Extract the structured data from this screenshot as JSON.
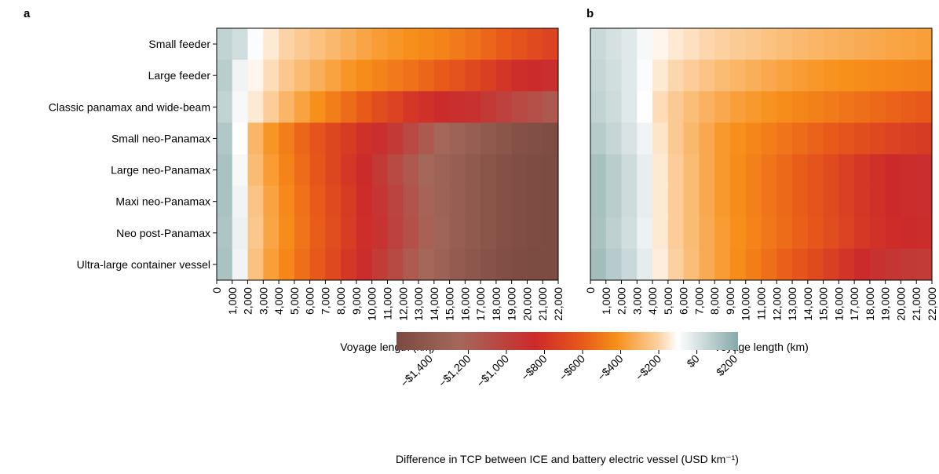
{
  "chart_data": [
    {
      "type": "heatmap",
      "panel_label": "a",
      "x_label": "Voyage length (km)",
      "categories": [
        "Small feeder",
        "Large feeder",
        "Classic panamax and wide-beam",
        "Small neo-Panamax",
        "Large neo-Panamax",
        "Maxi neo-Panamax",
        "Neo post-Panamax",
        "Ultra-large container vessel"
      ],
      "xlim": [
        0,
        22000
      ],
      "xticks": [
        0,
        {
          "value": 1000,
          "label": "1,000"
        },
        {
          "value": 2000,
          "label": "2,000"
        },
        {
          "value": 3000,
          "label": "3,000"
        },
        {
          "value": 4000,
          "label": "4,000"
        },
        {
          "value": 5000,
          "label": "5,000"
        },
        {
          "value": 6000,
          "label": "6,000"
        },
        {
          "value": 7000,
          "label": "7,000"
        },
        {
          "value": 8000,
          "label": "8,000"
        },
        {
          "value": 9000,
          "label": "9,000"
        },
        {
          "value": 10000,
          "label": "10,000"
        },
        {
          "value": 11000,
          "label": "11,000"
        },
        {
          "value": 12000,
          "label": "12,000"
        },
        {
          "value": 13000,
          "label": "13,000"
        },
        {
          "value": 14000,
          "label": "14,000"
        },
        {
          "value": 15000,
          "label": "15,000"
        },
        {
          "value": 16000,
          "label": "16,000"
        },
        {
          "value": 17000,
          "label": "17,000"
        },
        {
          "value": 18000,
          "label": "18,000"
        },
        {
          "value": 19000,
          "label": "19,000"
        },
        {
          "value": 20000,
          "label": "20,000"
        },
        {
          "value": 21000,
          "label": "21,000"
        },
        {
          "value": 22000,
          "label": "22,000"
        }
      ],
      "values": [
        [
          60,
          20,
          -90,
          -150,
          -200,
          -230,
          -260,
          -290,
          -320,
          -350,
          -380,
          -400,
          -420,
          -440,
          -460,
          -490,
          -520,
          -560,
          -600,
          -640,
          -680,
          -720
        ],
        [
          80,
          -60,
          -120,
          -180,
          -240,
          -280,
          -320,
          -360,
          -400,
          -430,
          -460,
          -490,
          -520,
          -560,
          -600,
          -640,
          -690,
          -740,
          -790,
          -830,
          -860,
          -880
        ],
        [
          60,
          -80,
          -150,
          -220,
          -300,
          -360,
          -420,
          -480,
          -540,
          -600,
          -660,
          -720,
          -780,
          -820,
          -860,
          -880,
          -900,
          -950,
          -1000,
          -1050,
          -1100,
          -1150
        ],
        [
          100,
          -100,
          -300,
          -400,
          -480,
          -560,
          -630,
          -700,
          -760,
          -820,
          -880,
          -950,
          -1050,
          -1150,
          -1250,
          -1300,
          -1350,
          -1400,
          -1450,
          -1500,
          -1520,
          -1540
        ],
        [
          120,
          -80,
          -280,
          -380,
          -460,
          -540,
          -620,
          -700,
          -780,
          -860,
          -950,
          -1050,
          -1150,
          -1250,
          -1300,
          -1350,
          -1400,
          -1450,
          -1500,
          -1530,
          -1550,
          -1560
        ],
        [
          120,
          -60,
          -250,
          -360,
          -440,
          -520,
          -600,
          -680,
          -760,
          -840,
          -920,
          -1020,
          -1120,
          -1220,
          -1300,
          -1350,
          -1400,
          -1450,
          -1500,
          -1530,
          -1550,
          -1560
        ],
        [
          110,
          -50,
          -240,
          -350,
          -430,
          -510,
          -590,
          -670,
          -750,
          -830,
          -910,
          -1000,
          -1100,
          -1200,
          -1280,
          -1350,
          -1400,
          -1450,
          -1500,
          -1530,
          -1550,
          -1560
        ],
        [
          120,
          -60,
          -260,
          -370,
          -450,
          -530,
          -610,
          -690,
          -780,
          -870,
          -960,
          -1060,
          -1160,
          -1250,
          -1320,
          -1380,
          -1430,
          -1480,
          -1520,
          -1550,
          -1560,
          -1570
        ]
      ]
    },
    {
      "type": "heatmap",
      "panel_label": "b",
      "x_label": "Voyage length (km)",
      "xlim": [
        0,
        22000
      ],
      "xticks": [
        0,
        {
          "value": 1000,
          "label": "1,000"
        },
        {
          "value": 2000,
          "label": "2,000"
        },
        {
          "value": 3000,
          "label": "3,000"
        },
        {
          "value": 4000,
          "label": "4,000"
        },
        {
          "value": 5000,
          "label": "5,000"
        },
        {
          "value": 6000,
          "label": "6,000"
        },
        {
          "value": 7000,
          "label": "7,000"
        },
        {
          "value": 8000,
          "label": "8,000"
        },
        {
          "value": 9000,
          "label": "9,000"
        },
        {
          "value": 10000,
          "label": "10,000"
        },
        {
          "value": 11000,
          "label": "11,000"
        },
        {
          "value": 12000,
          "label": "12,000"
        },
        {
          "value": 13000,
          "label": "13,000"
        },
        {
          "value": 14000,
          "label": "14,000"
        },
        {
          "value": 15000,
          "label": "15,000"
        },
        {
          "value": 16000,
          "label": "16,000"
        },
        {
          "value": 17000,
          "label": "17,000"
        },
        {
          "value": 18000,
          "label": "18,000"
        },
        {
          "value": 19000,
          "label": "19,000"
        },
        {
          "value": 20000,
          "label": "20,000"
        },
        {
          "value": 21000,
          "label": "21,000"
        },
        {
          "value": 22000,
          "label": "22,000"
        }
      ],
      "values": [
        [
          40,
          10,
          -20,
          -80,
          -120,
          -150,
          -170,
          -190,
          -210,
          -225,
          -240,
          -255,
          -270,
          -285,
          -300,
          -310,
          -320,
          -330,
          -340,
          -350,
          -360,
          -370
        ],
        [
          50,
          20,
          -20,
          -90,
          -150,
          -190,
          -220,
          -250,
          -280,
          -300,
          -320,
          -340,
          -360,
          -380,
          -395,
          -410,
          -420,
          -430,
          -440,
          -450,
          -460,
          -470
        ],
        [
          60,
          30,
          -20,
          -100,
          -180,
          -230,
          -270,
          -310,
          -340,
          -370,
          -390,
          -410,
          -430,
          -450,
          -470,
          -490,
          -510,
          -530,
          -550,
          -570,
          -590,
          -610
        ],
        [
          90,
          50,
          0,
          -60,
          -160,
          -230,
          -290,
          -340,
          -390,
          -420,
          -450,
          -480,
          -510,
          -540,
          -570,
          -600,
          -630,
          -660,
          -690,
          -720,
          -740,
          -760
        ],
        [
          130,
          80,
          30,
          -40,
          -150,
          -220,
          -280,
          -340,
          -390,
          -430,
          -470,
          -510,
          -550,
          -590,
          -630,
          -680,
          -730,
          -780,
          -820,
          -850,
          -870,
          -880
        ],
        [
          130,
          80,
          30,
          -40,
          -150,
          -220,
          -280,
          -340,
          -390,
          -430,
          -470,
          -510,
          -550,
          -590,
          -630,
          -680,
          -730,
          -780,
          -820,
          -850,
          -870,
          -880
        ],
        [
          120,
          70,
          20,
          -50,
          -150,
          -220,
          -280,
          -330,
          -380,
          -420,
          -460,
          -500,
          -540,
          -580,
          -620,
          -670,
          -720,
          -770,
          -810,
          -840,
          -860,
          -870
        ],
        [
          140,
          90,
          40,
          -30,
          -140,
          -210,
          -270,
          -330,
          -380,
          -430,
          -480,
          -530,
          -580,
          -630,
          -680,
          -740,
          -800,
          -860,
          -900,
          -930,
          -950,
          -960
        ]
      ]
    }
  ],
  "colorbar": {
    "label": "Difference in TCP between ICE and battery electric vessel (USD km⁻¹)",
    "lim": [
      -1577,
      216
    ],
    "ticks": [
      {
        "value": -1400,
        "label": "−$1,400"
      },
      {
        "value": -1200,
        "label": "−$1,200"
      },
      {
        "value": -1000,
        "label": "−$1,000"
      },
      {
        "value": -800,
        "label": "−$800"
      },
      {
        "value": -600,
        "label": "−$600"
      },
      {
        "value": -400,
        "label": "−$400"
      },
      {
        "value": -200,
        "label": "−$200"
      },
      {
        "value": 0,
        "label": "$0"
      },
      {
        "value": 200,
        "label": "$200"
      }
    ],
    "stops": [
      {
        "value": -1577,
        "color": "#7b4a40"
      },
      {
        "value": -1250,
        "color": "#a4685b"
      },
      {
        "value": -850,
        "color": "#cc2a2a"
      },
      {
        "value": -600,
        "color": "#e85a1a"
      },
      {
        "value": -420,
        "color": "#f7901a"
      },
      {
        "value": -200,
        "color": "#fcd3a5"
      },
      {
        "value": -100,
        "color": "#ffffff"
      },
      {
        "value": 216,
        "color": "#86a8a8"
      }
    ]
  }
}
